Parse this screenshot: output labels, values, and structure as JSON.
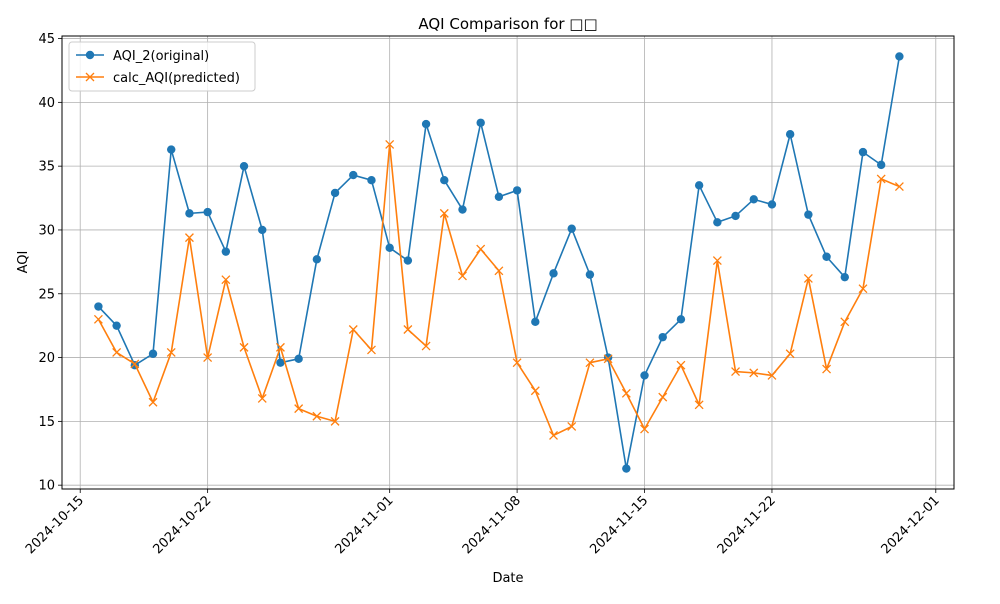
{
  "chart_data": {
    "type": "line",
    "title": "AQI Comparison for □□",
    "xlabel": "Date",
    "ylabel": "AQI",
    "x_ticks": [
      "2024-10-15",
      "2024-10-22",
      "2024-11-01",
      "2024-11-08",
      "2024-11-15",
      "2024-11-22",
      "2024-12-01"
    ],
    "y_ticks": [
      10,
      15,
      20,
      25,
      30,
      35,
      40,
      45
    ],
    "xlim": [
      "2024-10-14",
      "2024-12-02"
    ],
    "ylim": [
      9.7,
      45.2
    ],
    "grid": true,
    "legend_position": "upper-left",
    "x": [
      "2024-10-16",
      "2024-10-17",
      "2024-10-18",
      "2024-10-19",
      "2024-10-20",
      "2024-10-21",
      "2024-10-22",
      "2024-10-23",
      "2024-10-24",
      "2024-10-25",
      "2024-10-26",
      "2024-10-27",
      "2024-10-28",
      "2024-10-29",
      "2024-10-30",
      "2024-10-31",
      "2024-11-01",
      "2024-11-02",
      "2024-11-03",
      "2024-11-04",
      "2024-11-05",
      "2024-11-06",
      "2024-11-07",
      "2024-11-08",
      "2024-11-09",
      "2024-11-10",
      "2024-11-11",
      "2024-11-12",
      "2024-11-13",
      "2024-11-14",
      "2024-11-15",
      "2024-11-16",
      "2024-11-17",
      "2024-11-18",
      "2024-11-19",
      "2024-11-20",
      "2024-11-21",
      "2024-11-22",
      "2024-11-23",
      "2024-11-24",
      "2024-11-25",
      "2024-11-26",
      "2024-11-27",
      "2024-11-28",
      "2024-11-29"
    ],
    "series": [
      {
        "name": "AQI_2(original)",
        "color": "#1f77b4",
        "marker": "circle",
        "values": [
          24.0,
          22.5,
          19.4,
          20.3,
          36.3,
          31.3,
          31.4,
          28.3,
          35.0,
          30.0,
          19.6,
          19.9,
          27.7,
          32.9,
          34.3,
          33.9,
          28.6,
          27.6,
          38.3,
          33.9,
          31.6,
          38.4,
          32.6,
          33.1,
          22.8,
          26.6,
          30.1,
          26.5,
          20.0,
          11.3,
          18.6,
          21.6,
          23.0,
          33.5,
          30.6,
          31.1,
          32.4,
          32.0,
          37.5,
          31.2,
          27.9,
          26.3,
          36.1,
          35.1,
          43.6
        ]
      },
      {
        "name": "calc_AQI(predicted)",
        "color": "#ff7f0e",
        "marker": "x",
        "values": [
          23.0,
          20.4,
          19.5,
          16.5,
          20.4,
          29.4,
          20.0,
          26.1,
          20.8,
          16.8,
          20.8,
          16.0,
          15.4,
          15.0,
          22.2,
          20.6,
          36.7,
          22.2,
          20.9,
          31.3,
          26.4,
          28.5,
          26.8,
          19.6,
          17.4,
          13.9,
          14.6,
          19.6,
          19.9,
          17.2,
          14.4,
          16.9,
          19.4,
          16.3,
          27.6,
          18.9,
          18.8,
          18.6,
          20.3,
          26.2,
          19.1,
          22.8,
          25.4,
          34.0,
          33.4
        ]
      }
    ]
  }
}
